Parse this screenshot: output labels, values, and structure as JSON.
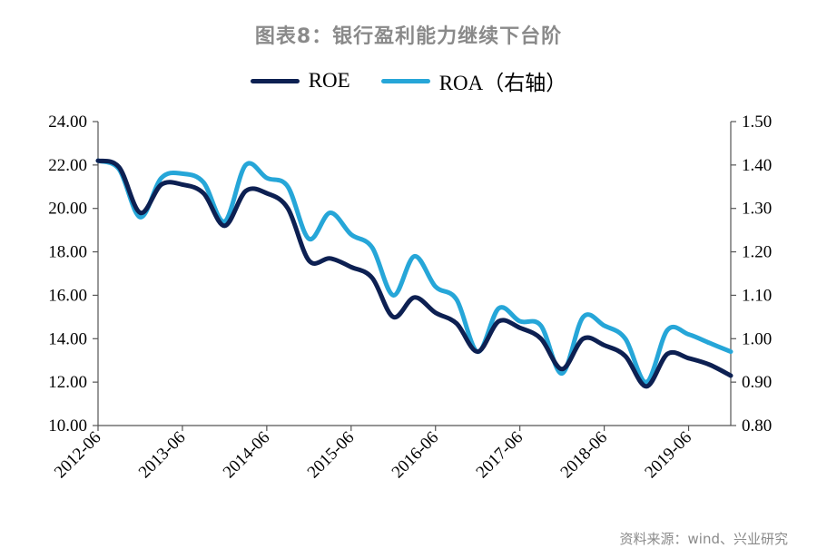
{
  "chart_data": {
    "type": "line",
    "title": "图表8：银行盈利能力继续下台阶",
    "source": "资料来源：wind、兴业研究",
    "x": [
      "2012-06",
      "2012-09",
      "2012-12",
      "2013-03",
      "2013-06",
      "2013-09",
      "2013-12",
      "2014-03",
      "2014-06",
      "2014-09",
      "2014-12",
      "2015-03",
      "2015-06",
      "2015-09",
      "2015-12",
      "2016-03",
      "2016-06",
      "2016-09",
      "2016-12",
      "2017-03",
      "2017-06",
      "2017-09",
      "2017-12",
      "2018-03",
      "2018-06",
      "2018-09",
      "2018-12",
      "2019-03",
      "2019-06",
      "2019-09",
      "2019-12"
    ],
    "xticks": [
      "2012-06",
      "2013-06",
      "2014-06",
      "2015-06",
      "2016-06",
      "2017-06",
      "2018-06",
      "2019-06"
    ],
    "yticks_left": [
      "10.00",
      "12.00",
      "14.00",
      "16.00",
      "18.00",
      "20.00",
      "22.00",
      "24.00"
    ],
    "yticks_right": [
      "0.80",
      "0.90",
      "1.00",
      "1.10",
      "1.20",
      "1.30",
      "1.40",
      "1.50"
    ],
    "ylim_left": [
      10,
      24
    ],
    "ylim_right": [
      0.8,
      1.5
    ],
    "series": [
      {
        "name": "ROE",
        "axis": "left",
        "color": "#0d2052",
        "values": [
          22.2,
          21.9,
          19.8,
          21.1,
          21.1,
          20.7,
          19.2,
          20.8,
          20.7,
          20.0,
          17.6,
          17.7,
          17.3,
          16.8,
          15.0,
          15.9,
          15.2,
          14.7,
          13.4,
          14.8,
          14.5,
          14.0,
          12.6,
          14.0,
          13.7,
          13.2,
          11.8,
          13.3,
          13.1,
          12.8,
          12.3
        ]
      },
      {
        "name": "ROA（右轴）",
        "axis": "right",
        "color": "#26a6d8",
        "values": [
          1.41,
          1.39,
          1.28,
          1.37,
          1.38,
          1.36,
          1.27,
          1.4,
          1.37,
          1.35,
          1.23,
          1.29,
          1.24,
          1.21,
          1.1,
          1.19,
          1.12,
          1.09,
          0.97,
          1.07,
          1.04,
          1.03,
          0.92,
          1.05,
          1.03,
          1.0,
          0.9,
          1.02,
          1.01,
          0.99,
          0.97
        ]
      }
    ]
  }
}
